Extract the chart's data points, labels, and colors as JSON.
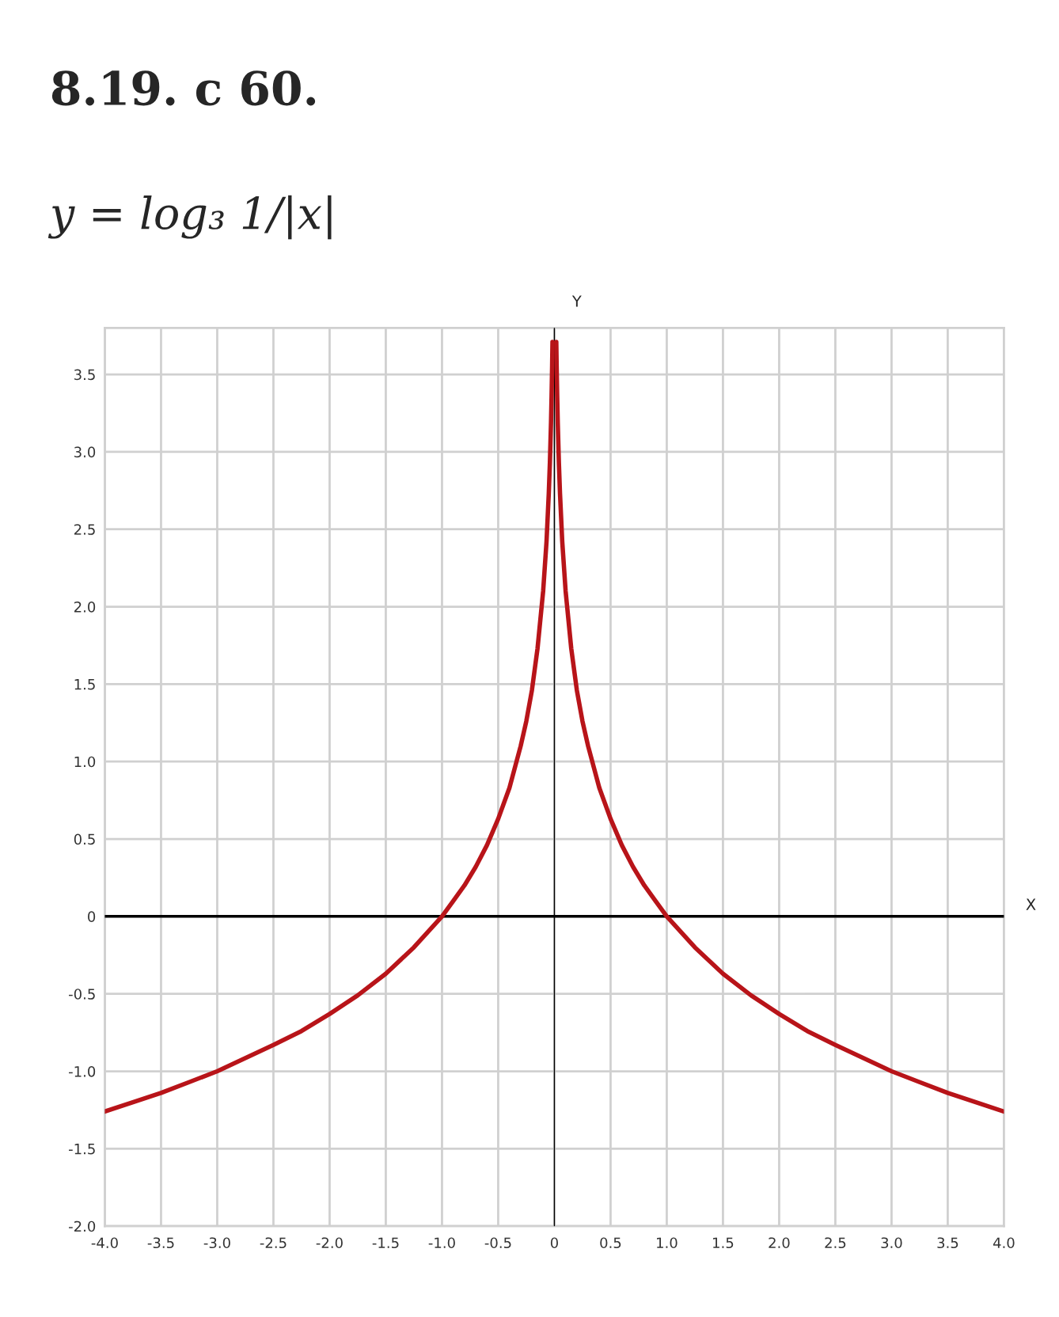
{
  "chart_data": {
    "type": "line",
    "title": "8.19. с 60.",
    "subtitle": "y = log₃ 1/|x|",
    "xlabel": "X",
    "ylabel": "Y",
    "x": [
      -4,
      -3.75,
      -3.5,
      -3.25,
      -3,
      -2.5,
      -2.25,
      -2,
      -1.75,
      -1.5,
      -1.25,
      -1,
      -0.9,
      -0.8,
      -0.7,
      -0.6,
      -0.5,
      -0.4,
      -0.3,
      -0.25,
      -0.2,
      -0.15,
      -0.1,
      -0.07,
      -0.05,
      -0.04,
      -0.03,
      -0.025,
      -0.02,
      -0.017,
      0,
      0.017,
      0.02,
      0.025,
      0.03,
      0.04,
      0.05,
      0.07,
      0.1,
      0.15,
      0.2,
      0.25,
      0.3,
      0.4,
      0.5,
      0.6,
      0.7,
      0.8,
      0.9,
      1,
      1.25,
      1.5,
      1.75,
      2,
      2.25,
      2.5,
      3,
      3.25,
      3.5,
      3.75,
      4
    ],
    "series": [
      {
        "color": "#b81419",
        "values": [
          -1.26,
          -1.2,
          -1.14,
          -1.07,
          -1.0,
          -0.83,
          -0.74,
          -0.63,
          -0.51,
          -0.37,
          -0.2,
          0.0,
          0.1,
          0.2,
          0.32,
          0.46,
          0.63,
          0.83,
          1.1,
          1.26,
          1.46,
          1.73,
          2.1,
          2.42,
          2.73,
          2.93,
          3.19,
          3.36,
          3.56,
          3.71,
          null,
          3.71,
          3.56,
          3.36,
          3.19,
          2.93,
          2.73,
          2.42,
          2.1,
          1.73,
          1.46,
          1.26,
          1.1,
          0.83,
          0.63,
          0.46,
          0.32,
          0.2,
          0.1,
          0.0,
          -0.2,
          -0.37,
          -0.51,
          -0.63,
          -0.74,
          -0.83,
          -1.0,
          -1.07,
          -1.14,
          -1.2,
          -1.26
        ]
      }
    ],
    "xlim": [
      -4,
      4
    ],
    "ylim": [
      -2,
      3.8
    ],
    "xticks": [
      {
        "value": -4,
        "label": "-4.0"
      },
      {
        "value": -3.5,
        "label": "-3.5"
      },
      {
        "value": -3,
        "label": "-3.0"
      },
      {
        "value": -2.5,
        "label": "-2.5"
      },
      {
        "value": -2,
        "label": "-2.0"
      },
      {
        "value": -1.5,
        "label": "-1.5"
      },
      {
        "value": -1,
        "label": "-1.0"
      },
      {
        "value": -0.5,
        "label": "-0.5"
      },
      0,
      {
        "value": 0.5,
        "label": "0.5"
      },
      {
        "value": 1,
        "label": "1.0"
      },
      {
        "value": 1.5,
        "label": "1.5"
      },
      {
        "value": 2,
        "label": "2.0"
      },
      {
        "value": 2.5,
        "label": "2.5"
      },
      {
        "value": 3,
        "label": "3.0"
      },
      {
        "value": 3.5,
        "label": "3.5"
      },
      {
        "value": 4,
        "label": "4.0"
      }
    ],
    "yticks": [
      {
        "value": -2,
        "label": "-2.0"
      },
      {
        "value": -1.5,
        "label": "-1.5"
      },
      {
        "value": -1,
        "label": "-1.0"
      },
      {
        "value": -0.5,
        "label": "-0.5"
      },
      0,
      {
        "value": 0.5,
        "label": "0.5"
      },
      {
        "value": 1,
        "label": "1.0"
      },
      {
        "value": 1.5,
        "label": "1.5"
      },
      {
        "value": 2,
        "label": "2.0"
      },
      {
        "value": 2.5,
        "label": "2.5"
      },
      {
        "value": 3,
        "label": "3.0"
      },
      {
        "value": 3.5,
        "label": "3.5"
      }
    ],
    "grid": true,
    "line_style": "solid"
  }
}
